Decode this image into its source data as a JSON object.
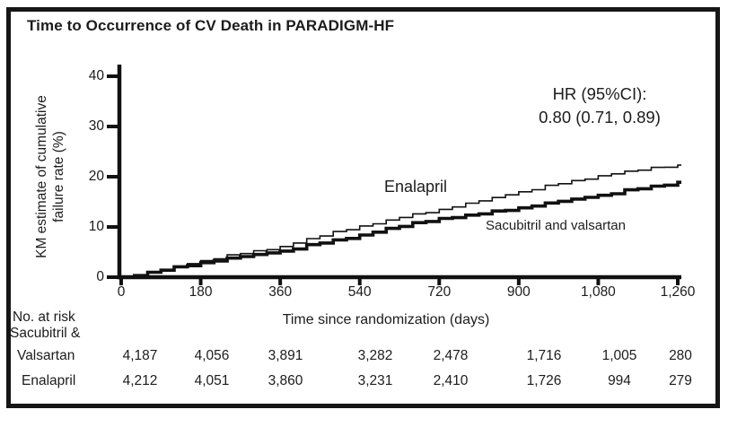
{
  "title": "Time to Occurrence of CV Death in PARADIGM-HF",
  "colors": {
    "text": "#1c1c1c",
    "line": "#111111",
    "frame": "#161616",
    "background": "#ffffff"
  },
  "labels": {
    "y_label_line1": "KM estimate of cumulative",
    "y_label_line2": "failure rate (%)",
    "x_label": "Time since randomization (days)"
  },
  "annotation": {
    "line1": "HR (95%CI):",
    "line2": "0.80 (0.71, 0.89)"
  },
  "chart_data": {
    "type": "line",
    "subtype": "kaplan-meier-step",
    "title": "Time to Occurrence of CV Death in PARADIGM-HF",
    "xlabel": "Time since randomization (days)",
    "ylabel": "KM estimate of cumulative failure rate (%)",
    "xlim": [
      0,
      1260
    ],
    "ylim": [
      0,
      40
    ],
    "x_ticks": [
      0,
      180,
      360,
      540,
      720,
      900,
      1080,
      1260
    ],
    "x_tick_labels": [
      "0",
      "180",
      "360",
      "540",
      "720",
      "900",
      "1,080",
      "1,260"
    ],
    "y_ticks": [
      0,
      10,
      20,
      30,
      40
    ],
    "grid": false,
    "legend_position": "inline-curve-labels",
    "annotation": "HR (95%CI): 0.80 (0.71, 0.89)",
    "x_sample_days": [
      0,
      90,
      180,
      270,
      360,
      450,
      540,
      630,
      720,
      810,
      900,
      990,
      1080,
      1170,
      1260
    ],
    "series": [
      {
        "name": "Enalapril",
        "line_weight": "thin",
        "values": [
          0,
          1.5,
          3.3,
          4.7,
          6.1,
          8.2,
          10.2,
          11.9,
          13.5,
          15.2,
          17.0,
          18.6,
          20.2,
          21.3,
          22.3
        ]
      },
      {
        "name": "Sacubitril and valsartan",
        "line_weight": "thick",
        "values": [
          0,
          1.4,
          2.9,
          4.1,
          5.2,
          6.8,
          8.4,
          10.1,
          11.7,
          12.6,
          13.8,
          15.1,
          16.3,
          17.6,
          18.9
        ]
      }
    ]
  },
  "risk_table": {
    "header": "No. at risk",
    "rows": [
      {
        "label_lines": [
          "Sacubitril &",
          "Valsartan"
        ],
        "counts": [
          "4,187",
          "4,056",
          "3,891",
          "3,282",
          "2,478",
          "1,716",
          "1,005",
          "280"
        ]
      },
      {
        "label_lines": [
          "Enalapril"
        ],
        "counts": [
          "4,212",
          "4,051",
          "3,860",
          "3,231",
          "2,410",
          "1,726",
          "994",
          "279"
        ]
      }
    ]
  }
}
